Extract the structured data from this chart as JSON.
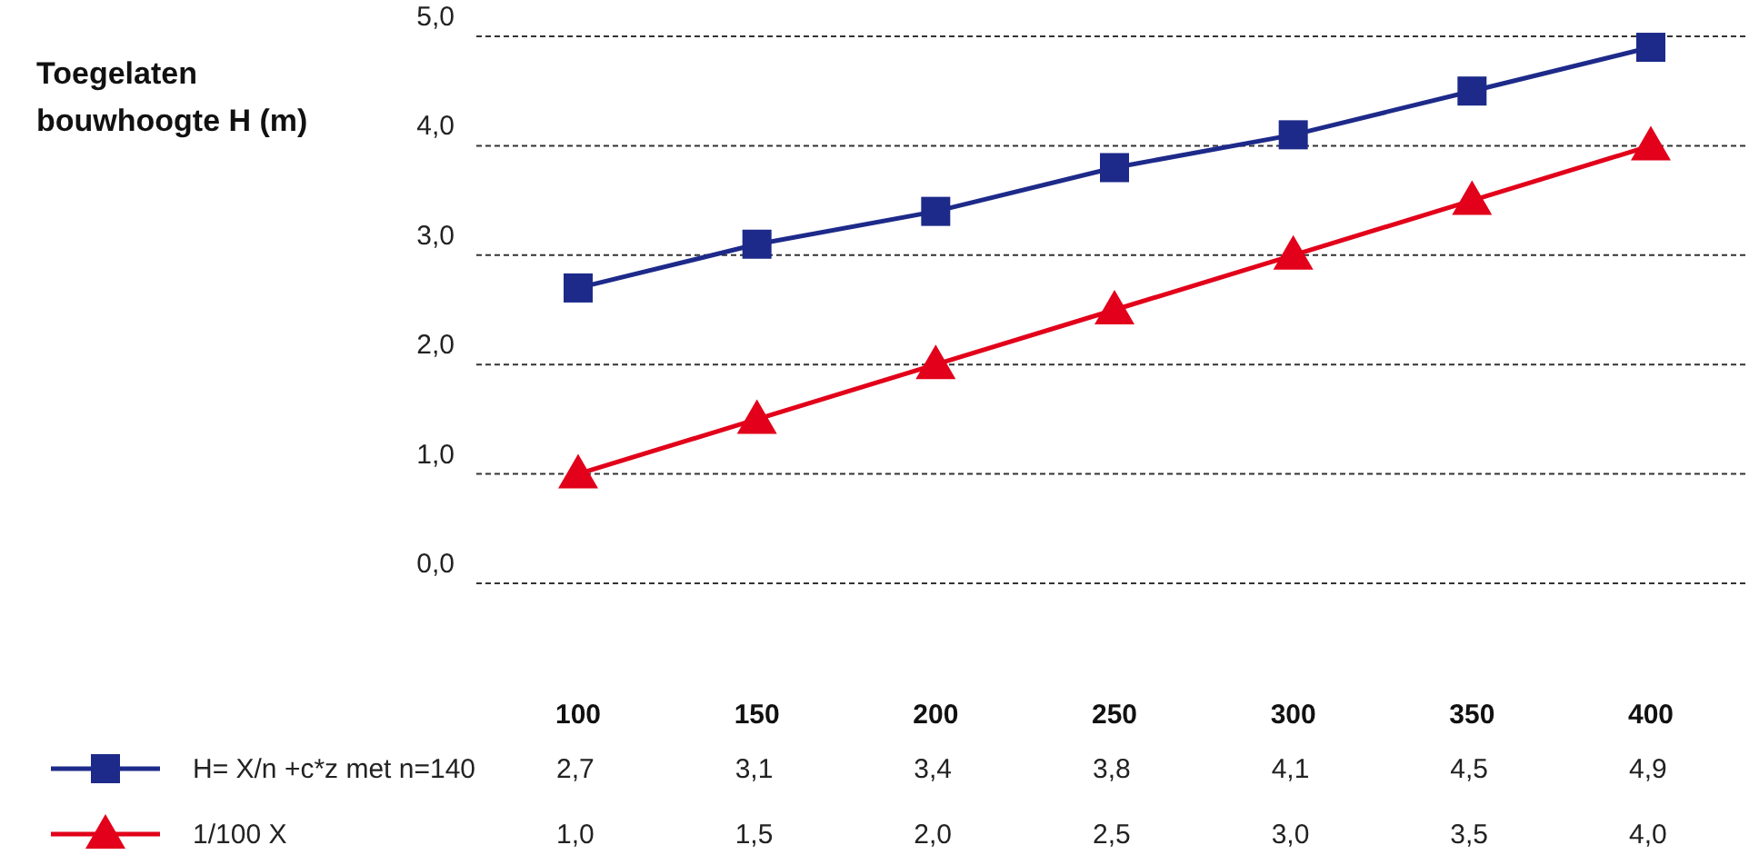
{
  "chart_data": {
    "type": "line",
    "ylabel": "Toegelaten bouwhoogte H (m)",
    "categories": [
      "100",
      "150",
      "200",
      "250",
      "300",
      "350",
      "400"
    ],
    "series": [
      {
        "name": "H= X/n +c*z met  n=140",
        "color": "#1d2a8a",
        "marker": "square",
        "values": [
          2.7,
          3.1,
          3.4,
          3.8,
          4.1,
          4.5,
          4.9
        ],
        "value_labels": [
          "2,7",
          "3,1",
          "3,4",
          "3,8",
          "4,1",
          "4,5",
          "4,9"
        ]
      },
      {
        "name": "1/100 X",
        "color": "#e2001a",
        "marker": "triangle",
        "values": [
          1.0,
          1.5,
          2.0,
          2.5,
          3.0,
          3.5,
          4.0
        ],
        "value_labels": [
          "1,0",
          "1,5",
          "2,0",
          "2,5",
          "3,0",
          "3,5",
          "4,0"
        ]
      }
    ],
    "ylim": [
      0,
      5
    ],
    "yticks": [
      {
        "value": 0,
        "label": "0,0"
      },
      {
        "value": 1,
        "label": "1,0"
      },
      {
        "value": 2,
        "label": "2,0"
      },
      {
        "value": 3,
        "label": "3,0"
      },
      {
        "value": 4,
        "label": "4,0"
      },
      {
        "value": 5,
        "label": "5,0"
      }
    ],
    "grid": "y",
    "legend": "bottom left"
  }
}
